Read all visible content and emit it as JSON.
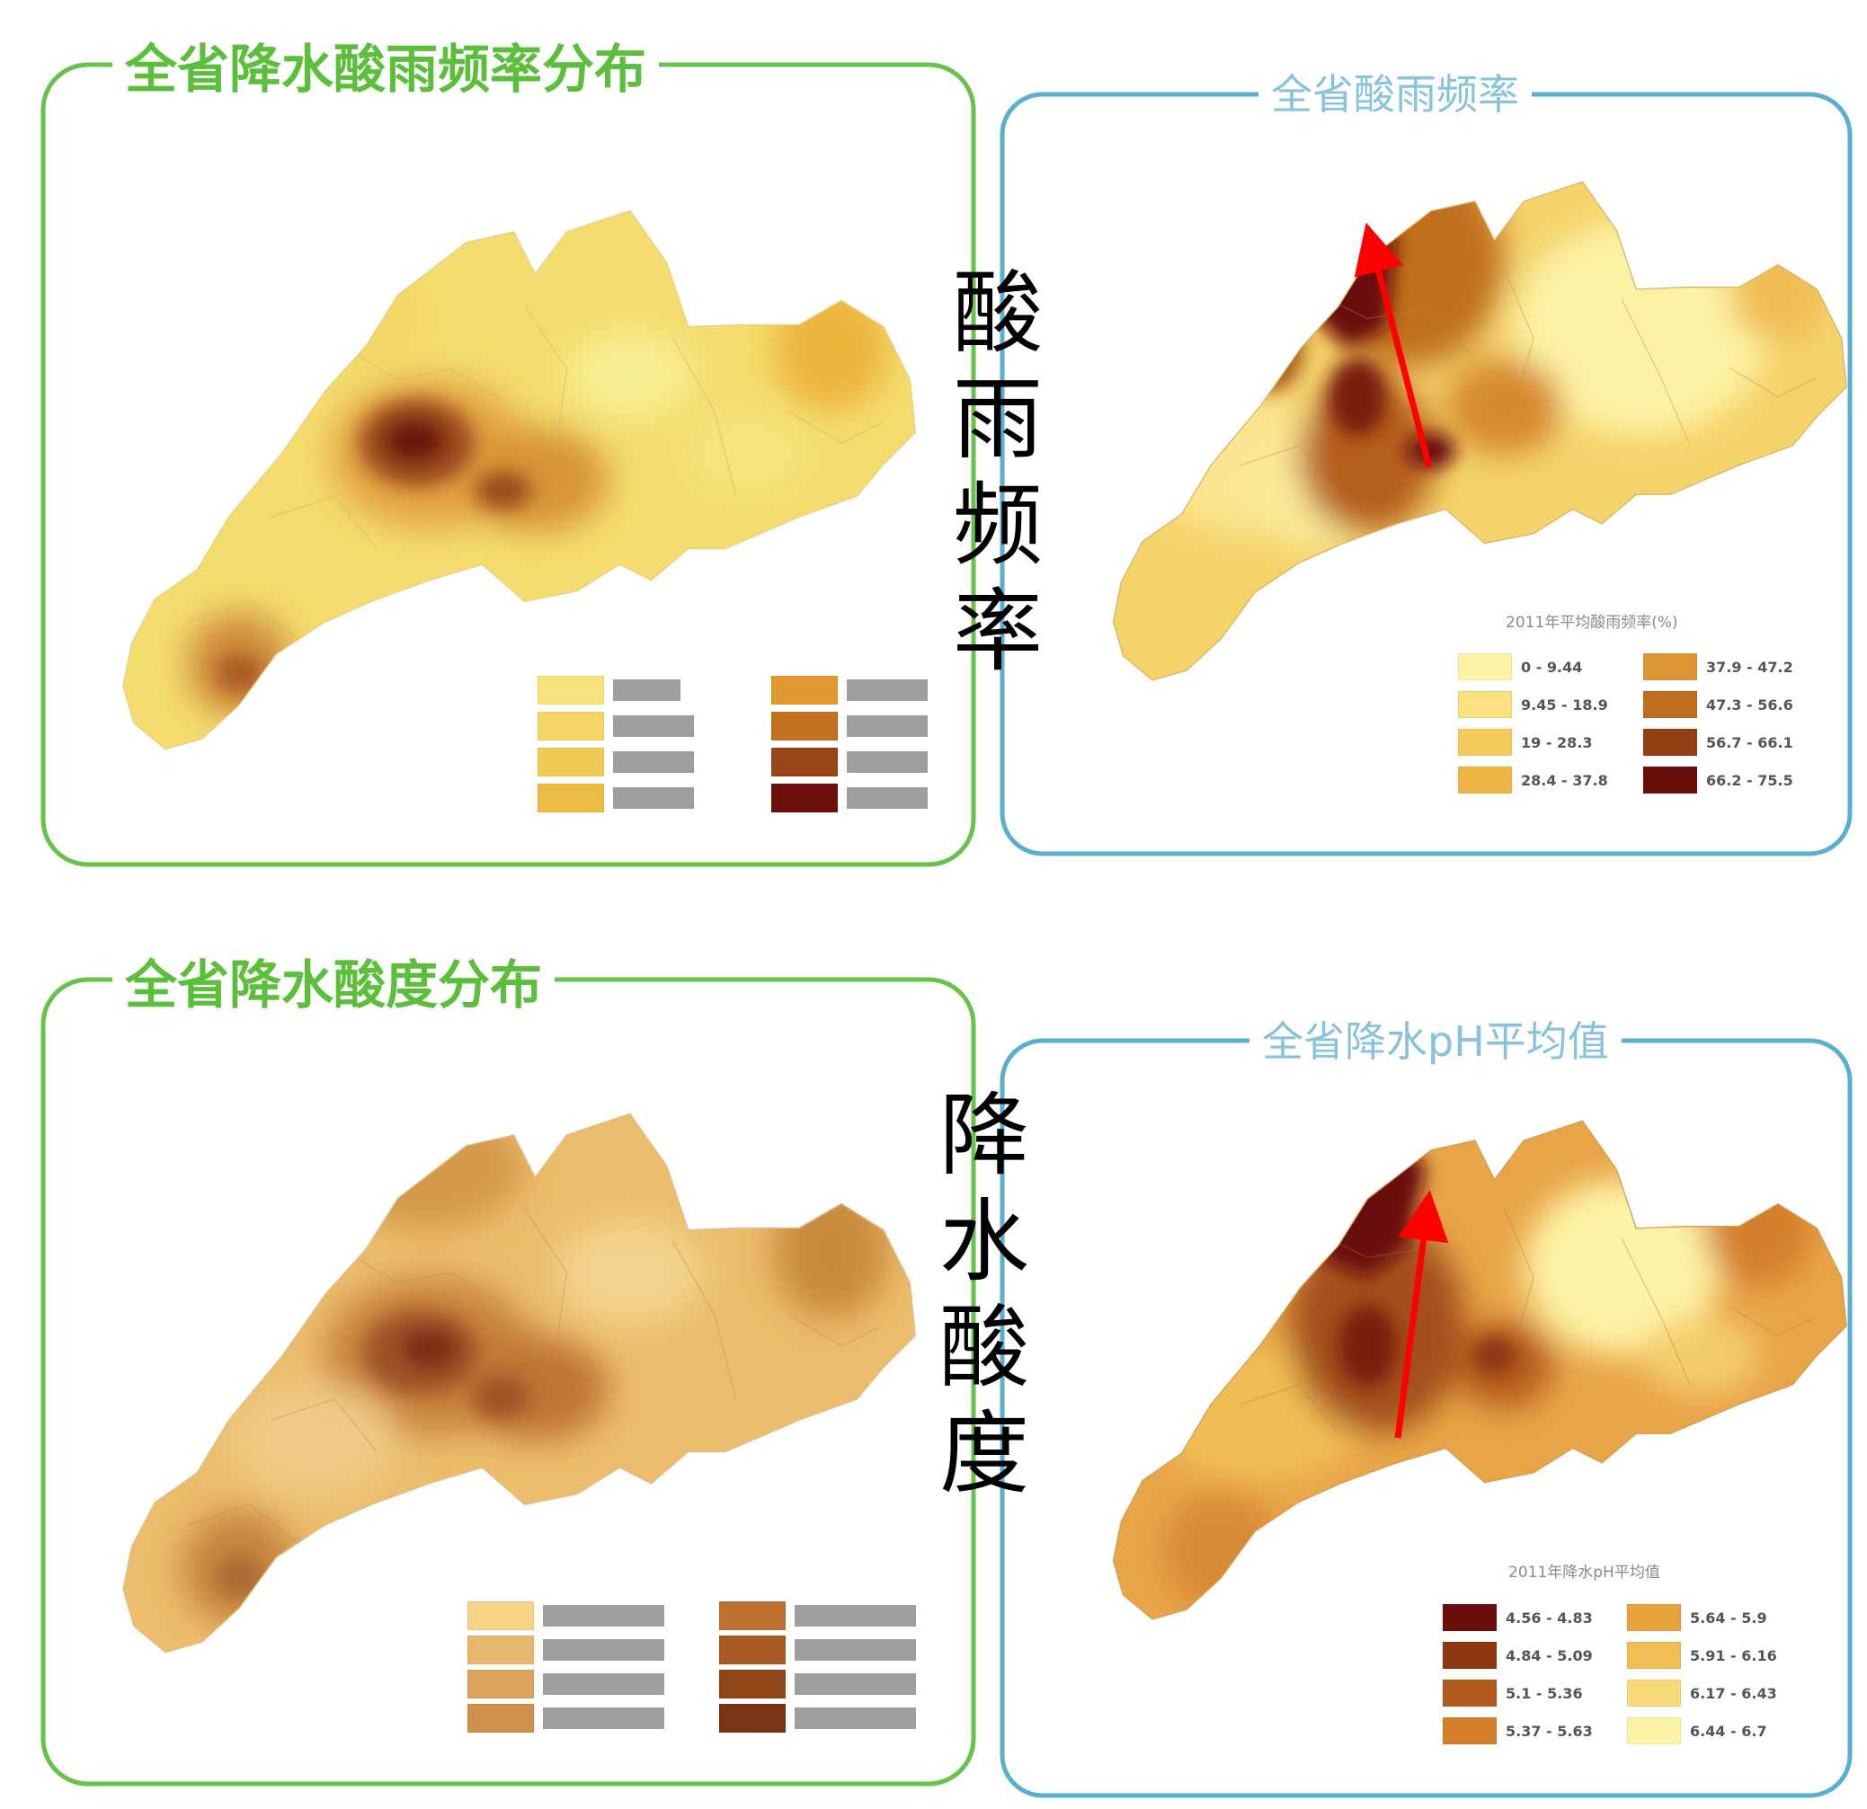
{
  "panels": {
    "frequency_distribution": {
      "title": "全省降水酸雨频率分布"
    },
    "acid_rain_frequency": {
      "title": "全省酸雨频率",
      "legend_title": "2011年平均酸雨频率(%)",
      "legend": [
        {
          "range": "0 - 9.44",
          "color": "#fdf3a4"
        },
        {
          "range": "9.45 - 18.9",
          "color": "#fbe07e"
        },
        {
          "range": "19 - 28.3",
          "color": "#f6cb5e"
        },
        {
          "range": "28.4 - 37.8",
          "color": "#efb548"
        },
        {
          "range": "37.9 - 47.2",
          "color": "#dc9634"
        },
        {
          "range": "47.3 - 56.6",
          "color": "#c06d22"
        },
        {
          "range": "56.7 - 66.1",
          "color": "#944013"
        },
        {
          "range": "66.2 - 75.5",
          "color": "#6b0e0a"
        }
      ]
    },
    "acidity_distribution": {
      "title": "全省降水酸度分布"
    },
    "ph_average": {
      "title": "全省降水pH平均值",
      "legend_title": "2011年降水pH平均值",
      "legend": [
        {
          "range": "4.56 - 4.83",
          "color": "#6b0e0a"
        },
        {
          "range": "4.84 - 5.09",
          "color": "#8e3512"
        },
        {
          "range": "5.1 - 5.36",
          "color": "#b2591c"
        },
        {
          "range": "5.37 - 5.63",
          "color": "#d4802a"
        },
        {
          "range": "5.64 - 5.9",
          "color": "#e7a23c"
        },
        {
          "range": "5.91 - 6.16",
          "color": "#f1bd55"
        },
        {
          "range": "6.17 - 6.43",
          "color": "#f8d979"
        },
        {
          "range": "6.44 - 6.7",
          "color": "#fdf3a6"
        }
      ]
    }
  },
  "side_labels": {
    "upper": [
      "酸",
      "雨",
      "频",
      "率"
    ],
    "lower": [
      "降",
      "水",
      "酸",
      "度"
    ]
  },
  "colors": {
    "green_frame": "#67c24a",
    "blue_frame": "#5aafd0",
    "arrow": "#ff0000"
  }
}
